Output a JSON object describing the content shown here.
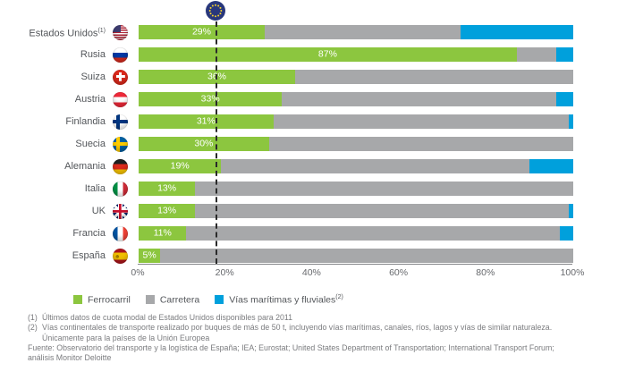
{
  "chart_data": {
    "type": "bar",
    "orientation": "horizontal",
    "stacked": true,
    "title": "",
    "xlabel": "",
    "ylabel": "",
    "xlim": [
      0,
      100
    ],
    "xticks": [
      "0%",
      "20%",
      "40%",
      "60%",
      "80%",
      "100%"
    ],
    "grid": false,
    "legend_position": "bottom",
    "categories": [
      "Estados Unidos",
      "Rusia",
      "Suiza",
      "Austria",
      "Finlandia",
      "Suecia",
      "Alemania",
      "Italia",
      "UK",
      "Francia",
      "España"
    ],
    "category_sups": [
      "(1)",
      "",
      "",
      "",
      "",
      "",
      "",
      "",
      "",
      "",
      ""
    ],
    "series": [
      {
        "name": "Ferrocarril",
        "color": "#8cc63f",
        "values": [
          29,
          87,
          36,
          33,
          31,
          30,
          19,
          13,
          13,
          11,
          5
        ]
      },
      {
        "name": "Carretera",
        "color": "#a7a8aa",
        "values": [
          45,
          9,
          64,
          63,
          68,
          70,
          71,
          87,
          86,
          86,
          95
        ]
      },
      {
        "name": "Vías marítimas y fluviales",
        "color": "#00a0dc",
        "values": [
          26,
          4,
          0,
          4,
          1,
          0,
          10,
          0,
          1,
          3,
          0
        ]
      }
    ],
    "bar_labels": [
      "29%",
      "87%",
      "36%",
      "33%",
      "31%",
      "30%",
      "19%",
      "13%",
      "13%",
      "11%",
      "5%"
    ],
    "annotations": [
      {
        "name": "eu-average-marker",
        "icon": "eu-flag",
        "x_pct": 18
      }
    ]
  },
  "flags": [
    {
      "code": "us",
      "icon": "us-flag-icon"
    },
    {
      "code": "ru",
      "icon": "russia-flag-icon"
    },
    {
      "code": "ch",
      "icon": "switzerland-flag-icon"
    },
    {
      "code": "at",
      "icon": "austria-flag-icon"
    },
    {
      "code": "fi",
      "icon": "finland-flag-icon"
    },
    {
      "code": "se",
      "icon": "sweden-flag-icon"
    },
    {
      "code": "de",
      "icon": "germany-flag-icon"
    },
    {
      "code": "it",
      "icon": "italy-flag-icon"
    },
    {
      "code": "uk",
      "icon": "uk-flag-icon"
    },
    {
      "code": "fr",
      "icon": "france-flag-icon"
    },
    {
      "code": "es",
      "icon": "spain-flag-icon"
    }
  ],
  "legend": {
    "items": [
      {
        "label": "Ferrocarril",
        "sup": "",
        "color": "#8cc63f"
      },
      {
        "label": "Carretera",
        "sup": "",
        "color": "#a7a8aa"
      },
      {
        "label": "Vías marítimas y fluviales",
        "sup": "(2)",
        "color": "#00a0dc"
      }
    ]
  },
  "footnotes": {
    "items": [
      {
        "num": "(1)",
        "text": "Últimos datos de cuota modal de Estados Unidos disponibles para 2011"
      },
      {
        "num": "(2)",
        "text": "Vías continentales de transporte realizado por buques de más de 50 t, incluyendo vías marítimas, canales, ríos, lagos y vías de similar naturaleza.\nÚnicamente para la países de la Unión Europea"
      }
    ],
    "source": "Fuente: Observatorio del transporte y la logística de España; IEA; Eurostat; United States Department of Transportation; International Transport Forum;\nanálisis Monitor Deloitte"
  }
}
